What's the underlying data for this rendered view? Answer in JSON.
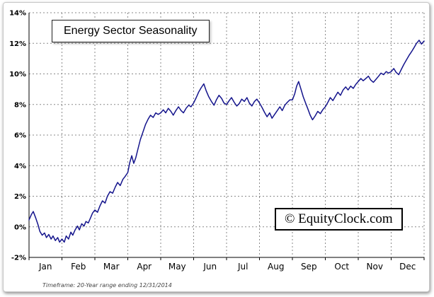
{
  "title": "Energy Sector Seasonality",
  "watermark": "© EquityClock.com",
  "footer": "Timeframe: 20-Year range ending 12/31/2014",
  "chart_data": {
    "type": "line",
    "title": "Energy Sector Seasonality",
    "xlabel": "",
    "ylabel": "",
    "x_categories": [
      "Jan",
      "Feb",
      "Mar",
      "Apr",
      "May",
      "Jun",
      "Jul",
      "Aug",
      "Sep",
      "Oct",
      "Nov",
      "Dec"
    ],
    "ylim": [
      -2,
      14
    ],
    "y_tick_step": 2,
    "y_tick_labels": [
      "-2%",
      "0%",
      "2%",
      "4%",
      "6%",
      "8%",
      "10%",
      "12%",
      "14%"
    ],
    "grid": "dashed",
    "legend": "none",
    "axis_color": "#000000",
    "grid_color": "#8a8a8a",
    "series": [
      {
        "name": "Energy Sector Seasonality",
        "color": "#14148c",
        "points": [
          [
            0.0,
            0.45
          ],
          [
            0.07,
            0.8
          ],
          [
            0.13,
            1.0
          ],
          [
            0.2,
            0.6
          ],
          [
            0.27,
            0.15
          ],
          [
            0.33,
            -0.3
          ],
          [
            0.4,
            -0.55
          ],
          [
            0.47,
            -0.4
          ],
          [
            0.53,
            -0.7
          ],
          [
            0.6,
            -0.5
          ],
          [
            0.67,
            -0.8
          ],
          [
            0.73,
            -0.6
          ],
          [
            0.8,
            -0.9
          ],
          [
            0.87,
            -0.7
          ],
          [
            0.93,
            -1.0
          ],
          [
            1.0,
            -0.8
          ],
          [
            1.07,
            -1.0
          ],
          [
            1.13,
            -0.6
          ],
          [
            1.2,
            -0.8
          ],
          [
            1.27,
            -0.35
          ],
          [
            1.33,
            -0.55
          ],
          [
            1.4,
            -0.2
          ],
          [
            1.47,
            0.05
          ],
          [
            1.53,
            -0.2
          ],
          [
            1.6,
            0.2
          ],
          [
            1.67,
            0.05
          ],
          [
            1.73,
            0.35
          ],
          [
            1.8,
            0.25
          ],
          [
            1.87,
            0.6
          ],
          [
            1.93,
            0.9
          ],
          [
            2.0,
            1.1
          ],
          [
            2.08,
            0.95
          ],
          [
            2.15,
            1.35
          ],
          [
            2.23,
            1.7
          ],
          [
            2.31,
            1.55
          ],
          [
            2.38,
            2.0
          ],
          [
            2.46,
            2.3
          ],
          [
            2.54,
            2.2
          ],
          [
            2.62,
            2.6
          ],
          [
            2.69,
            2.9
          ],
          [
            2.77,
            2.7
          ],
          [
            2.85,
            3.1
          ],
          [
            2.92,
            3.3
          ],
          [
            3.0,
            3.55
          ],
          [
            3.06,
            4.2
          ],
          [
            3.12,
            4.65
          ],
          [
            3.18,
            4.15
          ],
          [
            3.24,
            4.5
          ],
          [
            3.31,
            5.1
          ],
          [
            3.38,
            5.7
          ],
          [
            3.46,
            6.2
          ],
          [
            3.54,
            6.7
          ],
          [
            3.62,
            7.05
          ],
          [
            3.69,
            7.3
          ],
          [
            3.77,
            7.15
          ],
          [
            3.85,
            7.45
          ],
          [
            3.92,
            7.35
          ],
          [
            4.0,
            7.45
          ],
          [
            4.08,
            7.65
          ],
          [
            4.15,
            7.45
          ],
          [
            4.23,
            7.75
          ],
          [
            4.31,
            7.55
          ],
          [
            4.38,
            7.3
          ],
          [
            4.46,
            7.6
          ],
          [
            4.54,
            7.85
          ],
          [
            4.62,
            7.6
          ],
          [
            4.69,
            7.45
          ],
          [
            4.77,
            7.75
          ],
          [
            4.85,
            7.95
          ],
          [
            4.92,
            7.85
          ],
          [
            5.0,
            8.1
          ],
          [
            5.08,
            8.45
          ],
          [
            5.15,
            8.8
          ],
          [
            5.23,
            9.1
          ],
          [
            5.31,
            9.35
          ],
          [
            5.38,
            8.9
          ],
          [
            5.46,
            8.5
          ],
          [
            5.54,
            8.2
          ],
          [
            5.62,
            7.95
          ],
          [
            5.69,
            8.3
          ],
          [
            5.77,
            8.6
          ],
          [
            5.85,
            8.4
          ],
          [
            5.92,
            8.1
          ],
          [
            6.0,
            8.0
          ],
          [
            6.08,
            8.25
          ],
          [
            6.15,
            8.45
          ],
          [
            6.23,
            8.15
          ],
          [
            6.31,
            7.9
          ],
          [
            6.38,
            8.05
          ],
          [
            6.46,
            8.35
          ],
          [
            6.54,
            8.2
          ],
          [
            6.62,
            8.45
          ],
          [
            6.69,
            8.1
          ],
          [
            6.77,
            7.9
          ],
          [
            6.85,
            8.2
          ],
          [
            6.92,
            8.35
          ],
          [
            7.0,
            8.1
          ],
          [
            7.08,
            7.8
          ],
          [
            7.15,
            7.5
          ],
          [
            7.23,
            7.2
          ],
          [
            7.31,
            7.45
          ],
          [
            7.38,
            7.1
          ],
          [
            7.46,
            7.35
          ],
          [
            7.54,
            7.6
          ],
          [
            7.62,
            7.85
          ],
          [
            7.69,
            7.6
          ],
          [
            7.77,
            7.95
          ],
          [
            7.85,
            8.15
          ],
          [
            7.92,
            8.3
          ],
          [
            8.0,
            8.3
          ],
          [
            8.07,
            8.7
          ],
          [
            8.13,
            9.2
          ],
          [
            8.19,
            9.5
          ],
          [
            8.26,
            9.0
          ],
          [
            8.33,
            8.5
          ],
          [
            8.4,
            8.1
          ],
          [
            8.47,
            7.7
          ],
          [
            8.54,
            7.3
          ],
          [
            8.61,
            7.0
          ],
          [
            8.69,
            7.25
          ],
          [
            8.77,
            7.55
          ],
          [
            8.85,
            7.4
          ],
          [
            8.92,
            7.65
          ],
          [
            9.0,
            7.85
          ],
          [
            9.08,
            8.15
          ],
          [
            9.15,
            8.45
          ],
          [
            9.23,
            8.25
          ],
          [
            9.31,
            8.55
          ],
          [
            9.38,
            8.8
          ],
          [
            9.46,
            8.6
          ],
          [
            9.54,
            8.95
          ],
          [
            9.62,
            9.15
          ],
          [
            9.69,
            8.95
          ],
          [
            9.77,
            9.2
          ],
          [
            9.85,
            9.05
          ],
          [
            9.92,
            9.3
          ],
          [
            10.0,
            9.5
          ],
          [
            10.08,
            9.7
          ],
          [
            10.15,
            9.55
          ],
          [
            10.23,
            9.7
          ],
          [
            10.31,
            9.85
          ],
          [
            10.38,
            9.6
          ],
          [
            10.46,
            9.45
          ],
          [
            10.54,
            9.65
          ],
          [
            10.62,
            9.85
          ],
          [
            10.69,
            10.05
          ],
          [
            10.77,
            9.95
          ],
          [
            10.85,
            10.15
          ],
          [
            10.92,
            10.05
          ],
          [
            11.0,
            10.15
          ],
          [
            11.08,
            10.35
          ],
          [
            11.15,
            10.1
          ],
          [
            11.23,
            9.95
          ],
          [
            11.31,
            10.3
          ],
          [
            11.38,
            10.6
          ],
          [
            11.46,
            10.9
          ],
          [
            11.54,
            11.2
          ],
          [
            11.62,
            11.45
          ],
          [
            11.69,
            11.7
          ],
          [
            11.77,
            12.0
          ],
          [
            11.85,
            12.2
          ],
          [
            11.92,
            11.95
          ],
          [
            12.0,
            12.15
          ]
        ]
      }
    ]
  }
}
